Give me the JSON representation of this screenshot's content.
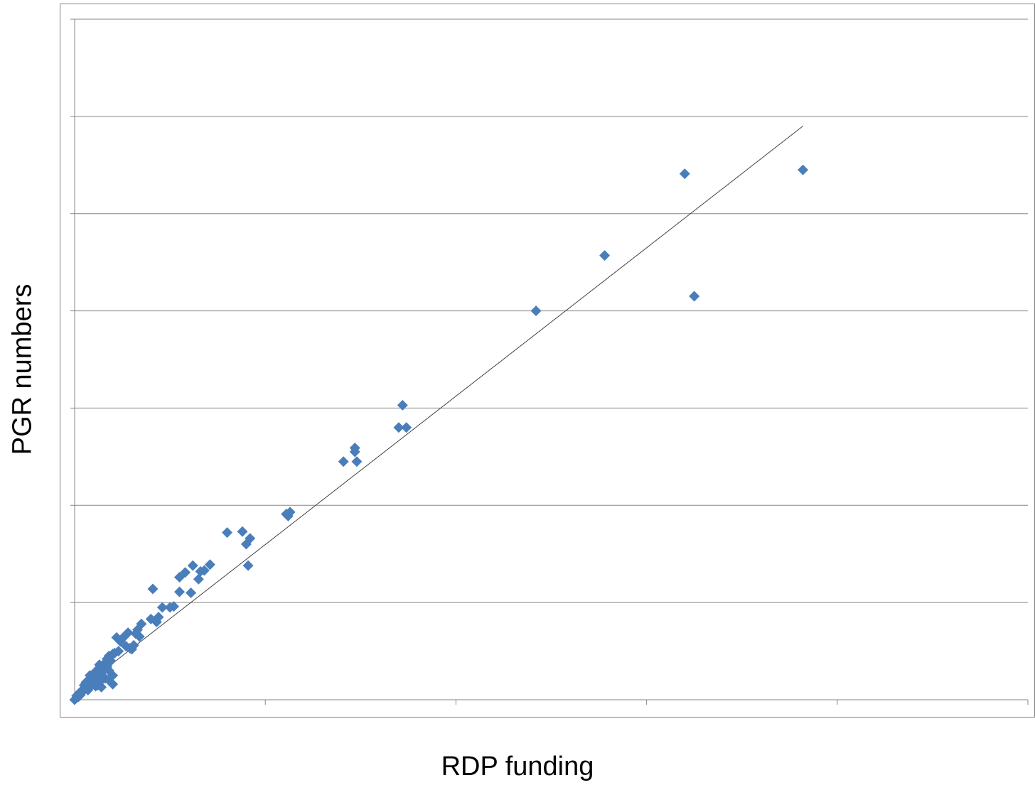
{
  "chart_data": {
    "type": "scatter",
    "title": "",
    "xlabel": "RDP funding",
    "ylabel": "PGR numbers",
    "xlim": [
      0,
      5
    ],
    "ylim": [
      0,
      7
    ],
    "x_ticks": 5,
    "y_gridlines": 7,
    "grid": "horizontal",
    "legend": "none",
    "marker": "diamond",
    "marker_color": "#4a7ebb",
    "trendline": {
      "type": "linear",
      "color": "#404040",
      "from": [
        0.0,
        0.07
      ],
      "to": [
        3.82,
        5.9
      ]
    },
    "series": [
      {
        "x": [
          3.82,
          3.2,
          2.78,
          3.25,
          2.42,
          1.72,
          1.7,
          1.74,
          1.47,
          1.47,
          1.48,
          1.41,
          1.11,
          1.12,
          1.13,
          0.88,
          0.9,
          0.91,
          0.8,
          0.92,
          0.55,
          0.65,
          0.58,
          0.62,
          0.66,
          0.61,
          0.68,
          0.71,
          0.41,
          0.5,
          0.52,
          0.55,
          0.46,
          0.4,
          0.44,
          0.43,
          0.35,
          0.26,
          0.32,
          0.33,
          0.28,
          0.22,
          0.25,
          0.24,
          0.34,
          0.27,
          0.29,
          0.31,
          0.3,
          0.23,
          0.2,
          0.18,
          0.21,
          0.17,
          0.19,
          0.13,
          0.16,
          0.14,
          0.15,
          0.17,
          0.2,
          0.15,
          0.11,
          0.12,
          0.14,
          0.16,
          0.18,
          0.09,
          0.1,
          0.13,
          0.12,
          0.08,
          0.09,
          0.11,
          0.06,
          0.05,
          0.07,
          0.04,
          0.03,
          0.02,
          0.01,
          0.06,
          0.05,
          0.03,
          0.02,
          0.01,
          0.0,
          0.14,
          0.2,
          0.1,
          0.13,
          0.18
        ],
        "y": [
          5.45,
          5.41,
          4.57,
          4.15,
          4.0,
          3.03,
          2.8,
          2.8,
          2.59,
          2.55,
          2.45,
          2.45,
          1.91,
          1.89,
          1.93,
          1.73,
          1.6,
          1.38,
          1.72,
          1.66,
          1.26,
          1.24,
          1.31,
          1.38,
          1.32,
          1.1,
          1.33,
          1.39,
          1.14,
          0.95,
          0.96,
          1.11,
          0.95,
          0.83,
          0.85,
          0.8,
          0.78,
          0.65,
          0.68,
          0.72,
          0.69,
          0.64,
          0.63,
          0.6,
          0.65,
          0.55,
          0.53,
          0.56,
          0.52,
          0.5,
          0.47,
          0.45,
          0.48,
          0.42,
          0.4,
          0.36,
          0.38,
          0.33,
          0.31,
          0.34,
          0.25,
          0.3,
          0.29,
          0.26,
          0.24,
          0.22,
          0.2,
          0.22,
          0.19,
          0.18,
          0.15,
          0.25,
          0.15,
          0.14,
          0.13,
          0.1,
          0.1,
          0.09,
          0.08,
          0.06,
          0.04,
          0.18,
          0.15,
          0.05,
          0.03,
          0.02,
          0.0,
          0.13,
          0.16,
          0.23,
          0.2,
          0.3
        ]
      }
    ]
  }
}
